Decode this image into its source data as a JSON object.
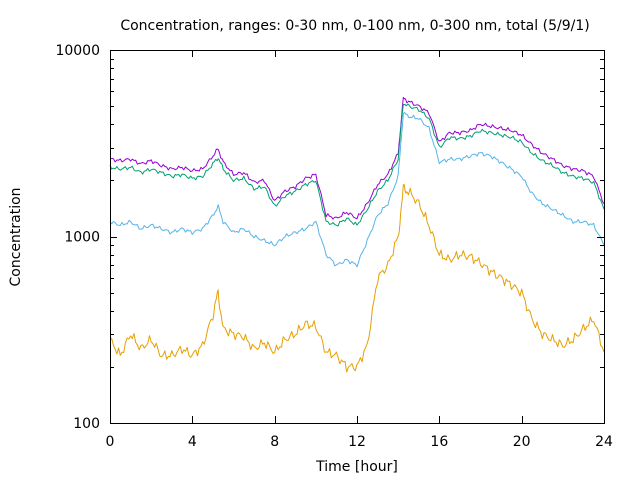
{
  "chart_data": {
    "type": "line",
    "title": "Concentration, ranges: 0-30 nm, 0-100 nm, 0-300 nm, total (5/9/1)",
    "xlabel": "Time [hour]",
    "ylabel": "Concentration",
    "xlim": [
      0,
      24
    ],
    "ylim": [
      100,
      10000
    ],
    "yscale": "log",
    "grid": false,
    "legend": "none",
    "x_ticks": [
      "0",
      "4",
      "8",
      "12",
      "16",
      "20",
      "24"
    ],
    "y_ticks": [
      "100",
      "1000",
      "10000"
    ],
    "x": [
      0,
      0.5,
      1,
      1.5,
      2,
      2.5,
      3,
      3.5,
      4,
      4.5,
      5,
      5.25,
      5.5,
      6,
      6.5,
      7,
      7.5,
      8,
      8.5,
      9,
      9.5,
      10,
      10.5,
      11,
      11.5,
      12,
      12.5,
      13,
      13.5,
      14,
      14.25,
      14.5,
      15,
      15.5,
      16,
      16.5,
      17,
      17.5,
      18,
      18.5,
      19,
      19.5,
      20,
      20.5,
      21,
      21.5,
      22,
      22.5,
      23,
      23.5,
      24
    ],
    "series": [
      {
        "color": "#9400d3",
        "values": [
          2600,
          2550,
          2600,
          2450,
          2550,
          2400,
          2300,
          2350,
          2250,
          2300,
          2700,
          2950,
          2500,
          2150,
          2200,
          1950,
          2000,
          1550,
          1750,
          1850,
          2050,
          2150,
          1300,
          1250,
          1350,
          1250,
          1500,
          1900,
          2150,
          2800,
          5500,
          5300,
          5000,
          4600,
          3200,
          3600,
          3600,
          3700,
          4000,
          3900,
          3800,
          3700,
          3500,
          3100,
          2800,
          2600,
          2400,
          2300,
          2250,
          2100,
          1500
        ]
      },
      {
        "color": "#009e73",
        "values": [
          2350,
          2300,
          2350,
          2200,
          2300,
          2200,
          2100,
          2150,
          2050,
          2100,
          2450,
          2650,
          2300,
          2000,
          2050,
          1800,
          1850,
          1450,
          1650,
          1750,
          1900,
          2000,
          1200,
          1150,
          1250,
          1150,
          1400,
          1750,
          2000,
          2600,
          5200,
          5000,
          4800,
          4300,
          3000,
          3400,
          3350,
          3450,
          3700,
          3600,
          3500,
          3400,
          3200,
          2800,
          2550,
          2400,
          2200,
          2100,
          2050,
          1950,
          1400
        ]
      },
      {
        "color": "#56b4e9",
        "values": [
          1200,
          1150,
          1200,
          1100,
          1150,
          1100,
          1050,
          1100,
          1050,
          1100,
          1300,
          1450,
          1200,
          1050,
          1100,
          1000,
          950,
          900,
          1000,
          1050,
          1100,
          1200,
          800,
          700,
          750,
          700,
          950,
          1300,
          1500,
          2100,
          4600,
          4400,
          4300,
          3800,
          2500,
          2600,
          2600,
          2700,
          2800,
          2700,
          2500,
          2300,
          2100,
          1700,
          1500,
          1400,
          1300,
          1200,
          1200,
          1150,
          900
        ]
      },
      {
        "color": "#e69f00",
        "values": [
          280,
          230,
          300,
          250,
          280,
          230,
          230,
          250,
          230,
          260,
          380,
          500,
          320,
          300,
          290,
          250,
          270,
          240,
          280,
          300,
          340,
          330,
          240,
          230,
          200,
          200,
          260,
          600,
          700,
          1000,
          1800,
          1750,
          1500,
          1150,
          800,
          750,
          800,
          780,
          720,
          650,
          600,
          550,
          500,
          360,
          300,
          280,
          260,
          280,
          320,
          360,
          240
        ]
      }
    ]
  }
}
